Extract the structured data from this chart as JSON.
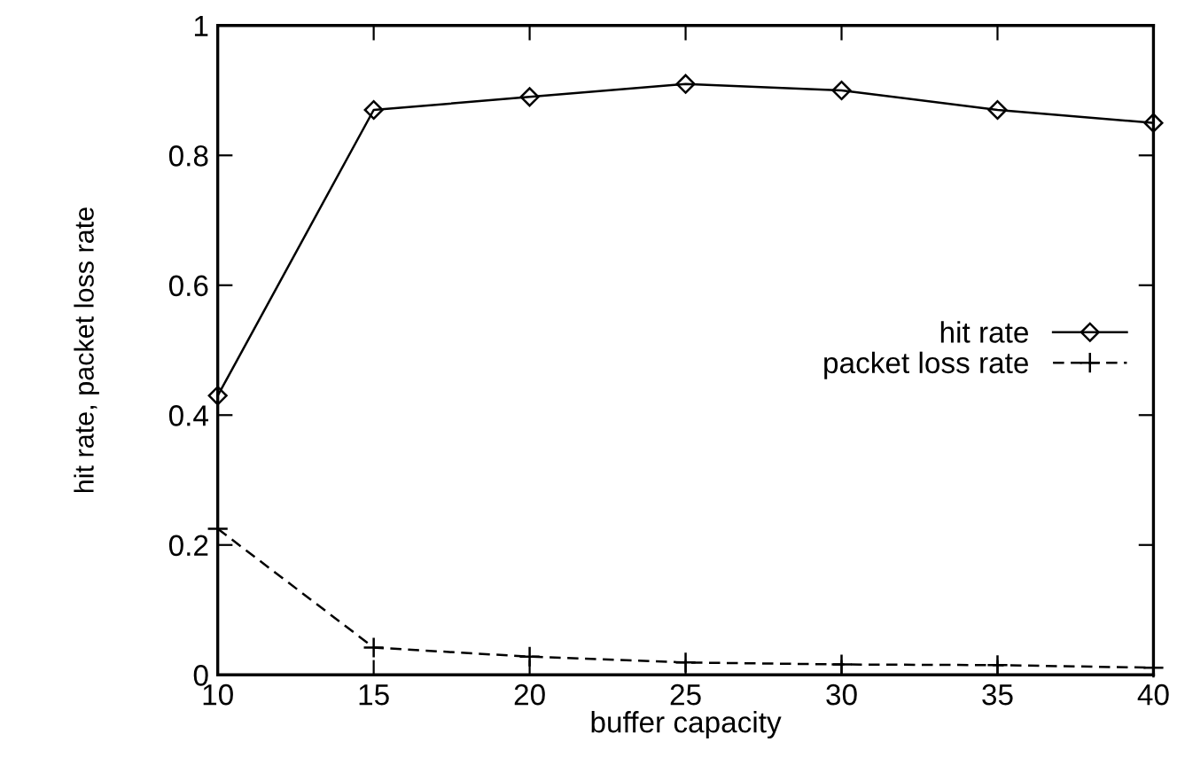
{
  "chart_data": {
    "type": "line",
    "xlabel": "buffer capacity",
    "ylabel": "hit rate, packet loss rate",
    "x": [
      10,
      15,
      20,
      25,
      30,
      35,
      40
    ],
    "series": [
      {
        "name": "hit rate",
        "color": "#000000",
        "marker": "diamond",
        "line_style": "solid",
        "values": [
          0.43,
          0.87,
          0.89,
          0.91,
          0.9,
          0.87,
          0.85
        ]
      },
      {
        "name": "packet loss rate",
        "color": "#000000",
        "marker": "cross",
        "line_style": "dashed",
        "values": [
          0.225,
          0.042,
          0.028,
          0.019,
          0.016,
          0.015,
          0.011
        ]
      }
    ],
    "xlim": [
      10,
      40
    ],
    "xticks": [
      10,
      15,
      20,
      25,
      30,
      35,
      40
    ],
    "ylim": [
      0,
      1
    ],
    "yticks": [
      0,
      0.2,
      0.4,
      0.6,
      0.8,
      1
    ],
    "grid": false,
    "legend": "right"
  }
}
